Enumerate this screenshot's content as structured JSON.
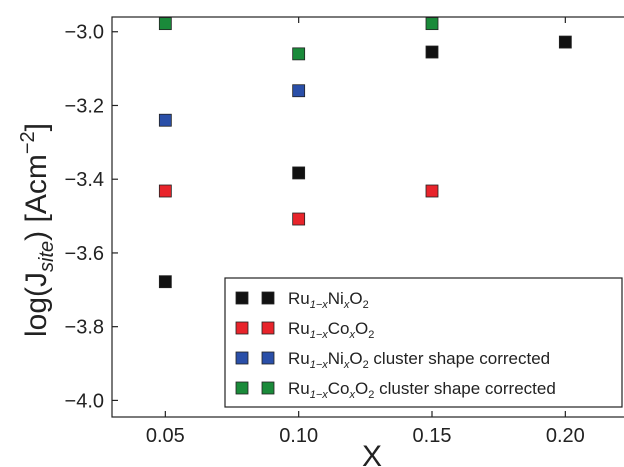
{
  "chart_data": {
    "type": "scatter",
    "xlabel": "X",
    "ylabel": "log(J",
    "ylabel_sub": "site",
    "ylabel_unit": ") [Acm",
    "ylabel_sup": "−2",
    "ylabel_end": "]",
    "xlim": [
      0.03,
      0.225
    ],
    "ylim": [
      -4.045,
      -2.96
    ],
    "x_ticks": [
      {
        "value": 0.05,
        "label": "0.05"
      },
      {
        "value": 0.1,
        "label": "0.10"
      },
      {
        "value": 0.15,
        "label": "0.15"
      },
      {
        "value": 0.2,
        "label": "0.20"
      }
    ],
    "y_ticks": [
      {
        "value": -3.0,
        "label": "−3.0"
      },
      {
        "value": -3.2,
        "label": "−3.2"
      },
      {
        "value": -3.4,
        "label": "−3.4"
      },
      {
        "value": -3.6,
        "label": "−3.6"
      },
      {
        "value": -3.8,
        "label": "−3.8"
      },
      {
        "value": -4.0,
        "label": "−4.0"
      }
    ],
    "legend_position": "lower-right",
    "grid": false,
    "series": [
      {
        "key": "ru-ni",
        "color": "#111111",
        "legend": {
          "a": "Ru",
          "s1": "1−x",
          "b": "Ni",
          "s2": "x",
          "c": "O",
          "s3": "2",
          "d": ""
        },
        "points": [
          [
            0.05,
            -3.678
          ],
          [
            0.1,
            -3.383
          ],
          [
            0.15,
            -3.055
          ],
          [
            0.2,
            -3.028
          ]
        ]
      },
      {
        "key": "ru-co",
        "color": "#e8242b",
        "legend": {
          "a": "Ru",
          "s1": "1−x",
          "b": "Co",
          "s2": "x",
          "c": "O",
          "s3": "2",
          "d": ""
        },
        "points": [
          [
            0.05,
            -3.432
          ],
          [
            0.1,
            -3.508
          ],
          [
            0.15,
            -3.432
          ]
        ]
      },
      {
        "key": "ru-ni-corrected",
        "color": "#2a4fa8",
        "legend": {
          "a": "Ru",
          "s1": "1−x",
          "b": "Ni",
          "s2": "x",
          "c": "O",
          "s3": "2",
          "d": " cluster shape corrected"
        },
        "points": [
          [
            0.05,
            -3.24
          ],
          [
            0.1,
            -3.16
          ]
        ]
      },
      {
        "key": "ru-co-corrected",
        "color": "#1a8a3a",
        "legend": {
          "a": "Ru",
          "s1": "1−x",
          "b": "Co",
          "s2": "x",
          "c": "O",
          "s3": "2",
          "d": " cluster shape corrected"
        },
        "points": [
          [
            0.05,
            -2.978
          ],
          [
            0.1,
            -3.06
          ],
          [
            0.15,
            -2.978
          ]
        ]
      }
    ]
  }
}
